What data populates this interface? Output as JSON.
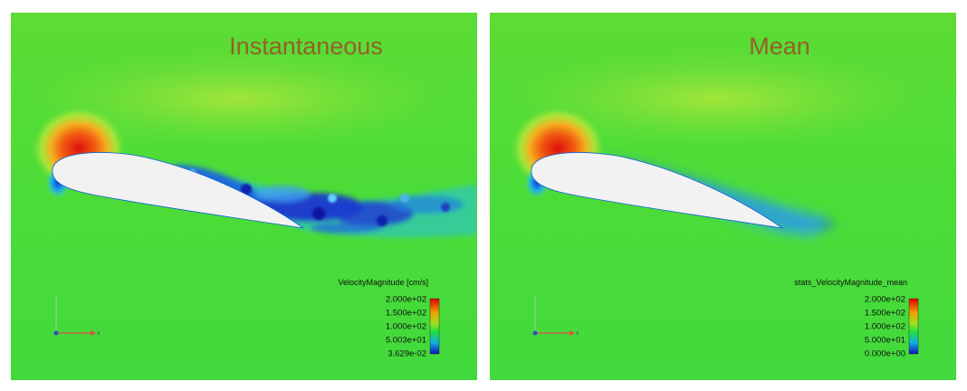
{
  "panels": [
    {
      "title": "Instantaneous",
      "legend": {
        "title": "VelocityMagnitude [cm/s]",
        "labels": [
          "2.000e+02",
          "1.500e+02",
          "1.000e+02",
          "5.003e+01",
          "3.629e-02"
        ]
      },
      "axis_label": "x"
    },
    {
      "title": "Mean",
      "legend": {
        "title": "stats_VelocityMagnitude_mean",
        "labels": [
          "2.000e+02",
          "1.500e+02",
          "1.000e+02",
          "5.000e+01",
          "0.000e+00"
        ]
      },
      "axis_label": "x"
    }
  ]
}
